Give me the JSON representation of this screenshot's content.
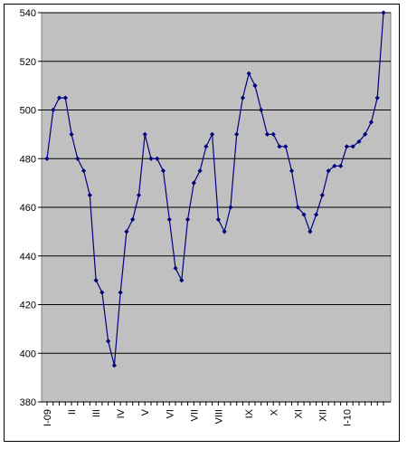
{
  "chart_data": {
    "type": "line",
    "title": "",
    "xlabel": "",
    "ylabel": "",
    "ylim": [
      380,
      540
    ],
    "yticks": [
      380,
      400,
      420,
      440,
      460,
      480,
      500,
      520,
      540
    ],
    "grid": "horizontal",
    "legend": "none",
    "xtick_labels": [
      {
        "label": "I-09",
        "index": 0
      },
      {
        "label": "II",
        "index": 4
      },
      {
        "label": "III",
        "index": 8
      },
      {
        "label": "IV",
        "index": 12
      },
      {
        "label": "V",
        "index": 16
      },
      {
        "label": "VI",
        "index": 20
      },
      {
        "label": "VII",
        "index": 24
      },
      {
        "label": "VIII",
        "index": 28
      },
      {
        "label": "IX",
        "index": 33
      },
      {
        "label": "X",
        "index": 37
      },
      {
        "label": "XI",
        "index": 41
      },
      {
        "label": "XII",
        "index": 45
      },
      {
        "label": "I-10",
        "index": 49
      }
    ],
    "series": [
      {
        "values": [
          480,
          500,
          505,
          505,
          490,
          480,
          475,
          465,
          430,
          425,
          405,
          395,
          425,
          450,
          455,
          465,
          490,
          480,
          480,
          475,
          455,
          435,
          430,
          455,
          470,
          475,
          485,
          490,
          455,
          450,
          460,
          490,
          505,
          515,
          510,
          500,
          490,
          490,
          485,
          485,
          475,
          460,
          457,
          450,
          457,
          465,
          475,
          477,
          477,
          485,
          485,
          487,
          490,
          495,
          505,
          540
        ]
      }
    ],
    "colors": {
      "line": "#000080",
      "marker": "#000080",
      "plot_bg": "#c0c0c0",
      "gridline": "#000000"
    }
  }
}
